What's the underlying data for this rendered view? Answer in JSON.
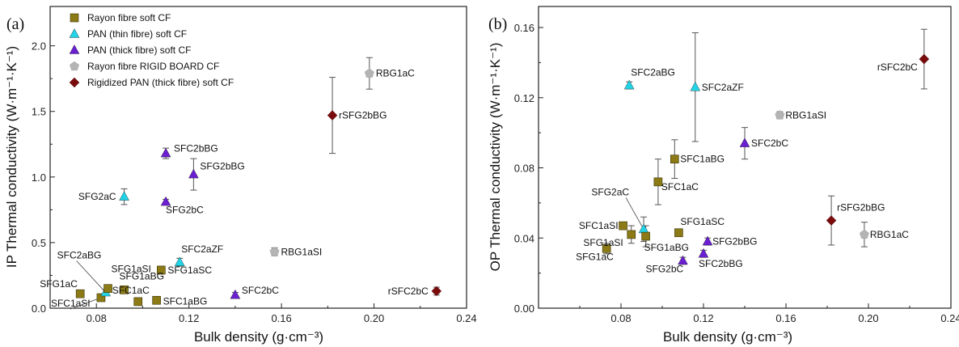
{
  "colors": {
    "rayon_soft": "#8b7a16",
    "pan_thin": "#22d3e6",
    "pan_thick": "#6a1fd0",
    "rigid_board": "#b4b4b4",
    "rigidized_pan": "#7a0c0c",
    "axis": "#222222",
    "errorbar": "#555555"
  },
  "legend": [
    {
      "label": "Rayon fibre soft CF",
      "marker": "square",
      "color": "#8b7a16"
    },
    {
      "label": "PAN (thin fibre) soft CF",
      "marker": "triangle",
      "color": "#22d3e6"
    },
    {
      "label": "PAN (thick fibre) soft CF",
      "marker": "triangle",
      "color": "#6a1fd0"
    },
    {
      "label": "Rayon fibre RIGID BOARD CF",
      "marker": "pentagon",
      "color": "#b4b4b4"
    },
    {
      "label": "Rigidized PAN (thick fibre) soft CF",
      "marker": "diamond",
      "color": "#7a0c0c"
    }
  ],
  "chart_data": [
    {
      "type": "scatter",
      "panel_label": "(a)",
      "xlabel": "Bulk density (g·cm⁻³)",
      "ylabel": "IP Thermal conductivity (W·m⁻¹·K⁻¹)",
      "xlim": [
        0.06,
        0.24
      ],
      "ylim": [
        0,
        2.3
      ],
      "xticks": [
        0.08,
        0.12,
        0.16,
        0.2,
        0.24
      ],
      "xtick_labels": [
        "0.08",
        "0.12",
        "0.16",
        "0.20",
        "0.24"
      ],
      "yticks": [
        0,
        0.5,
        1.0,
        1.5,
        2.0
      ],
      "ytick_labels": [
        "0.0",
        "0.5",
        "1.0",
        "1.5",
        "2.0"
      ],
      "legend_position": "top-left",
      "points": [
        {
          "label": "SFG1aC",
          "x": 0.073,
          "y": 0.11,
          "err": 0.02,
          "series": "rayon_soft"
        },
        {
          "label": "SFC1aSI",
          "x": 0.082,
          "y": 0.08,
          "err": 0.02,
          "series": "rayon_soft"
        },
        {
          "label": "SFC2aBG",
          "x": 0.084,
          "y": 0.12,
          "err": 0.02,
          "series": "pan_thin"
        },
        {
          "label": "SFG1aSI",
          "x": 0.085,
          "y": 0.15,
          "err": 0.02,
          "series": "rayon_soft"
        },
        {
          "label": "SFG1aBG",
          "x": 0.092,
          "y": 0.14,
          "err": 0.02,
          "series": "rayon_soft"
        },
        {
          "label": "SFC1aC",
          "x": 0.098,
          "y": 0.05,
          "err": 0.02,
          "series": "rayon_soft"
        },
        {
          "label": "SFC1aBG",
          "x": 0.106,
          "y": 0.06,
          "err": 0.02,
          "series": "rayon_soft"
        },
        {
          "label": "SFG1aSC",
          "x": 0.108,
          "y": 0.29,
          "err": 0.03,
          "series": "rayon_soft"
        },
        {
          "label": "SFC2aZF",
          "x": 0.116,
          "y": 0.35,
          "err": 0.03,
          "series": "pan_thin"
        },
        {
          "label": "SFG2aC",
          "x": 0.092,
          "y": 0.85,
          "err": 0.06,
          "series": "pan_thin"
        },
        {
          "label": "SFG2bC",
          "x": 0.11,
          "y": 0.81,
          "err": 0.02,
          "series": "pan_thick"
        },
        {
          "label": "SFC2bBG",
          "x": 0.11,
          "y": 1.18,
          "err": 0.04,
          "series": "pan_thick"
        },
        {
          "label": "SFG2bBG",
          "x": 0.122,
          "y": 1.02,
          "err": 0.12,
          "series": "pan_thick"
        },
        {
          "label": "SFC2bC",
          "x": 0.14,
          "y": 0.1,
          "err": 0.02,
          "series": "pan_thick"
        },
        {
          "label": "RBG1aSI",
          "x": 0.157,
          "y": 0.43,
          "err": 0.03,
          "series": "rigid_board"
        },
        {
          "label": "RBG1aC",
          "x": 0.198,
          "y": 1.79,
          "err": 0.12,
          "series": "rigid_board"
        },
        {
          "label": "rSFG2bBG",
          "x": 0.182,
          "y": 1.47,
          "err": 0.29,
          "series": "rigidized_pan"
        },
        {
          "label": "rSFC2bC",
          "x": 0.227,
          "y": 0.13,
          "err": 0.03,
          "series": "rigidized_pan"
        }
      ]
    },
    {
      "type": "scatter",
      "panel_label": "(b)",
      "xlabel": "Bulk density (g·cm⁻³)",
      "ylabel": "OP Thermal conductivity (W·m⁻¹·K⁻¹)",
      "xlim": [
        0.04,
        0.24
      ],
      "ylim": [
        0,
        0.172
      ],
      "xticks": [
        0.04,
        0.08,
        0.12,
        0.16,
        0.2,
        0.24
      ],
      "xtick_labels": [
        "",
        "0.08",
        "0.12",
        "0.16",
        "0.20",
        "0.24"
      ],
      "yticks": [
        0,
        0.04,
        0.08,
        0.12,
        0.16
      ],
      "ytick_labels": [
        "0.00",
        "0.04",
        "0.08",
        "0.12",
        "0.16"
      ],
      "points": [
        {
          "label": "SFC2aBG",
          "x": 0.084,
          "y": 0.127,
          "err": 0.002,
          "series": "pan_thin"
        },
        {
          "label": "SFC2aZF",
          "x": 0.116,
          "y": 0.126,
          "err": 0.031,
          "series": "pan_thin"
        },
        {
          "label": "RBG1aSI",
          "x": 0.157,
          "y": 0.11,
          "err": 0.002,
          "series": "rigid_board"
        },
        {
          "label": "SFC2bC",
          "x": 0.14,
          "y": 0.094,
          "err": 0.009,
          "series": "pan_thick"
        },
        {
          "label": "SFC1aBG",
          "x": 0.106,
          "y": 0.085,
          "err": 0.011,
          "series": "rayon_soft"
        },
        {
          "label": "SFC1aC",
          "x": 0.098,
          "y": 0.072,
          "err": 0.013,
          "series": "rayon_soft"
        },
        {
          "label": "SFG2aC",
          "x": 0.091,
          "y": 0.045,
          "err": 0.007,
          "series": "pan_thin"
        },
        {
          "label": "SFC1aSI",
          "x": 0.081,
          "y": 0.047,
          "err": 0.002,
          "series": "rayon_soft"
        },
        {
          "label": "SFG1aSI",
          "x": 0.085,
          "y": 0.042,
          "err": 0.005,
          "series": "rayon_soft"
        },
        {
          "label": "SFG1aBG",
          "x": 0.092,
          "y": 0.041,
          "err": 0.006,
          "series": "rayon_soft"
        },
        {
          "label": "SFG1aSC",
          "x": 0.108,
          "y": 0.043,
          "err": 0.002,
          "series": "rayon_soft"
        },
        {
          "label": "SFG1aC",
          "x": 0.073,
          "y": 0.034,
          "err": 0.003,
          "series": "rayon_soft"
        },
        {
          "label": "SFG2bC",
          "x": 0.11,
          "y": 0.027,
          "err": 0.002,
          "series": "pan_thick"
        },
        {
          "label": "SFG2bBG",
          "x": 0.122,
          "y": 0.038,
          "err": 0.002,
          "series": "pan_thick"
        },
        {
          "label": "SFC2bBG",
          "x": 0.12,
          "y": 0.031,
          "err": 0.002,
          "series": "pan_thick"
        },
        {
          "label": "rSFG2bBG",
          "x": 0.182,
          "y": 0.05,
          "err": 0.014,
          "series": "rigidized_pan"
        },
        {
          "label": "RBG1aC",
          "x": 0.198,
          "y": 0.042,
          "err": 0.007,
          "series": "rigid_board"
        },
        {
          "label": "rSFC2bC",
          "x": 0.227,
          "y": 0.142,
          "err": 0.017,
          "series": "rigidized_pan"
        }
      ]
    }
  ]
}
